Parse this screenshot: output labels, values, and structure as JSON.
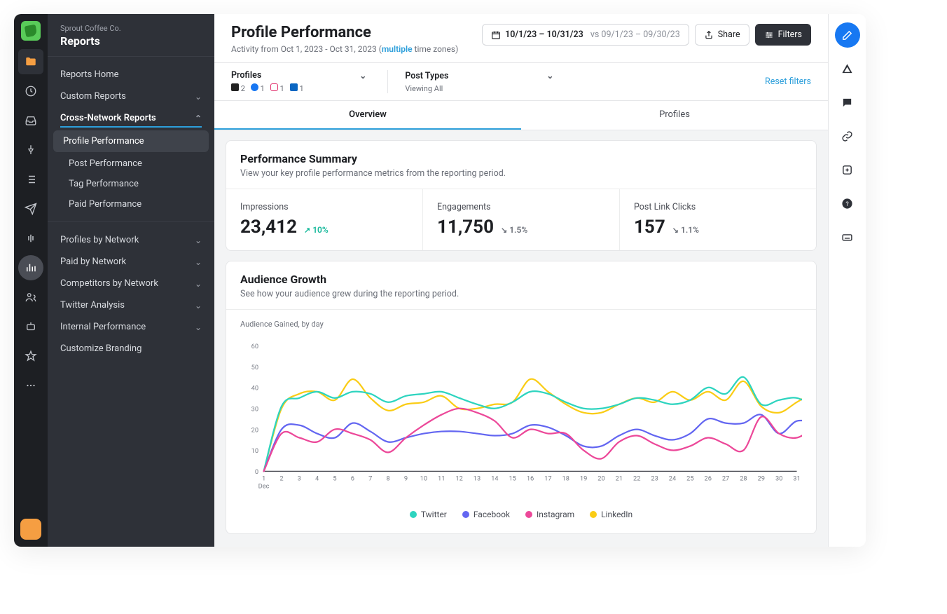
{
  "brand": {
    "company": "Sprout Coffee Co.",
    "section": "Reports"
  },
  "sidebar": {
    "reports_home": "Reports Home",
    "custom_reports": "Custom Reports",
    "cross_network": "Cross-Network Reports",
    "subs": [
      "Profile Performance",
      "Post Performance",
      "Tag Performance",
      "Paid Performance"
    ],
    "groups": [
      "Profiles by Network",
      "Paid by Network",
      "Competitors by Network",
      "Twitter Analysis",
      "Internal Performance",
      "Customize Branding"
    ]
  },
  "header": {
    "title": "Profile Performance",
    "activity_prefix": "Activity from Oct 1, 2023 - Oct 31, 2023 (",
    "activity_link": "multiple",
    "activity_suffix": " time zones)",
    "date_range": "10/1/23 – 10/31/23",
    "compare": "vs 09/1/23 – 09/30/23",
    "share": "Share",
    "filters": "Filters"
  },
  "filters": {
    "profiles_label": "Profiles",
    "profiles": [
      {
        "net": "tw",
        "count": "2"
      },
      {
        "net": "fb",
        "count": "1"
      },
      {
        "net": "ig",
        "count": "1"
      },
      {
        "net": "li",
        "count": "1"
      }
    ],
    "types_label": "Post Types",
    "types_sub": "Viewing All",
    "reset": "Reset filters"
  },
  "tabs": {
    "overview": "Overview",
    "profiles": "Profiles"
  },
  "summary": {
    "title": "Performance Summary",
    "desc": "View your key profile performance metrics from the reporting period.",
    "metrics": [
      {
        "label": "Impressions",
        "value": "23,412",
        "delta": "10%",
        "dir": "up"
      },
      {
        "label": "Engagements",
        "value": "11,750",
        "delta": "1.5%",
        "dir": "down"
      },
      {
        "label": "Post Link Clicks",
        "value": "157",
        "delta": "1.1%",
        "dir": "down"
      }
    ]
  },
  "growth": {
    "title": "Audience Growth",
    "desc": "See how your audience grew during the reporting period.",
    "chart_label": "Audience Gained, by day",
    "x_month": "Dec",
    "y_ticks": [
      0,
      10,
      20,
      30,
      40,
      50,
      60
    ],
    "x_ticks": [
      1,
      2,
      3,
      4,
      5,
      6,
      7,
      8,
      9,
      10,
      11,
      12,
      13,
      14,
      15,
      16,
      17,
      18,
      19,
      20,
      21,
      22,
      23,
      24,
      25,
      26,
      27,
      28,
      29,
      30,
      31
    ],
    "colors": {
      "twitter": "#2dd4bf",
      "facebook": "#6366f1",
      "instagram": "#ec4899",
      "linkedin": "#facc15"
    },
    "series": {
      "twitter": [
        0,
        31,
        35,
        38,
        35,
        38,
        37,
        33,
        36,
        37,
        38,
        35,
        32,
        30,
        33,
        38,
        37,
        33,
        30,
        30,
        32,
        35,
        34,
        32,
        34,
        40,
        37,
        45,
        32,
        34,
        35,
        31
      ],
      "linkedin": [
        0,
        30,
        37,
        38,
        34,
        44,
        35,
        29,
        32,
        33,
        36,
        30,
        30,
        32,
        33,
        44,
        38,
        32,
        28,
        28,
        32,
        35,
        33,
        38,
        34,
        38,
        34,
        43,
        31,
        28,
        33,
        38
      ],
      "facebook": [
        0,
        20,
        22,
        18,
        16,
        23,
        19,
        14,
        16,
        18,
        19,
        19,
        18,
        17,
        18,
        22,
        21,
        17,
        12,
        12,
        17,
        20,
        17,
        15,
        18,
        25,
        23,
        23,
        27,
        18,
        24,
        23
      ],
      "instagram": [
        0,
        18,
        16,
        14,
        20,
        18,
        15,
        9,
        16,
        22,
        27,
        30,
        28,
        24,
        16,
        20,
        18,
        18,
        10,
        6,
        14,
        17,
        13,
        10,
        12,
        16,
        13,
        10,
        26,
        18,
        16,
        21
      ]
    },
    "legend": [
      {
        "label": "Twitter",
        "k": "twitter"
      },
      {
        "label": "Facebook",
        "k": "facebook"
      },
      {
        "label": "Instagram",
        "k": "instagram"
      },
      {
        "label": "LinkedIn",
        "k": "linkedin"
      }
    ],
    "ylim": [
      0,
      60
    ]
  }
}
